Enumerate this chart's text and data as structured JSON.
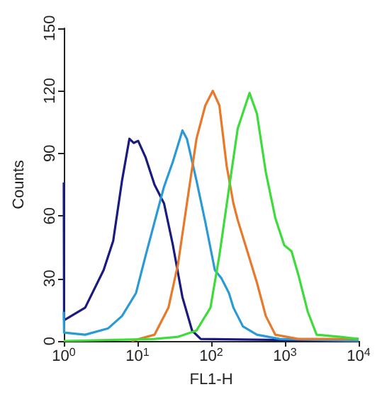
{
  "chart_data": {
    "type": "line",
    "xlabel": "FL1-H",
    "ylabel": "Counts",
    "log": "x",
    "grid": false,
    "marker": "none",
    "line_style": "solid",
    "xlim": [
      1,
      10000
    ],
    "xticks": [
      {
        "value": 1,
        "label": "10$^{0}$"
      },
      {
        "value": 10,
        "label": "10$^{1}$"
      },
      {
        "value": 100,
        "label": "10$^{2}$"
      },
      {
        "value": 1000,
        "label": "10$^{3}$"
      },
      {
        "value": 10000,
        "label": "10$^{4}$"
      }
    ],
    "ylim": [
      0,
      150
    ],
    "yticks": [
      0,
      30,
      60,
      90,
      120,
      150
    ],
    "series": [
      {
        "color": "#1a1a80",
        "x": [
          1,
          1.01,
          1.95,
          3.47,
          4.68,
          6.17,
          7.76,
          8.9,
          10.2,
          12.9,
          17,
          22.9,
          30.2,
          40.7,
          55,
          72,
          10000
        ],
        "values": [
          76,
          10,
          16,
          34,
          48,
          77,
          97,
          95,
          96,
          88,
          75,
          66,
          46,
          21,
          5,
          1,
          0
        ]
      },
      {
        "color": "#2a9ad6",
        "x": [
          1,
          1.01,
          1.95,
          3.98,
          6.17,
          9.55,
          12.9,
          17,
          22.9,
          30.2,
          40.7,
          46.8,
          63.1,
          83.2,
          112,
          138,
          174,
          200,
          269,
          417,
          851,
          10000
        ],
        "values": [
          14,
          4,
          3,
          6,
          12,
          23,
          41,
          57,
          74,
          86,
          101,
          97,
          77,
          57,
          34,
          30,
          23,
          16,
          7,
          3,
          1,
          0
        ]
      },
      {
        "color": "#e8782a",
        "x": [
          8.3,
          17,
          26.3,
          35.5,
          46.8,
          63.1,
          83.2,
          105,
          129,
          162,
          200,
          229,
          309,
          417,
          550,
          741,
          1514,
          10000
        ],
        "values": [
          0,
          3,
          16,
          37,
          66,
          97,
          113,
          120,
          113,
          84,
          66,
          58,
          43,
          28,
          12,
          3,
          1,
          1
        ]
      },
      {
        "color": "#3ddc3a",
        "x": [
          1,
          17,
          35.5,
          63.1,
          97.7,
          129,
          174,
          229,
          331,
          417,
          550,
          741,
          977,
          1230,
          1514,
          2042,
          2692,
          5623,
          10000
        ],
        "values": [
          0,
          1,
          2,
          5,
          16,
          41,
          73,
          102,
          119,
          109,
          81,
          59,
          46,
          43,
          32,
          14,
          3,
          2,
          1
        ]
      }
    ]
  }
}
